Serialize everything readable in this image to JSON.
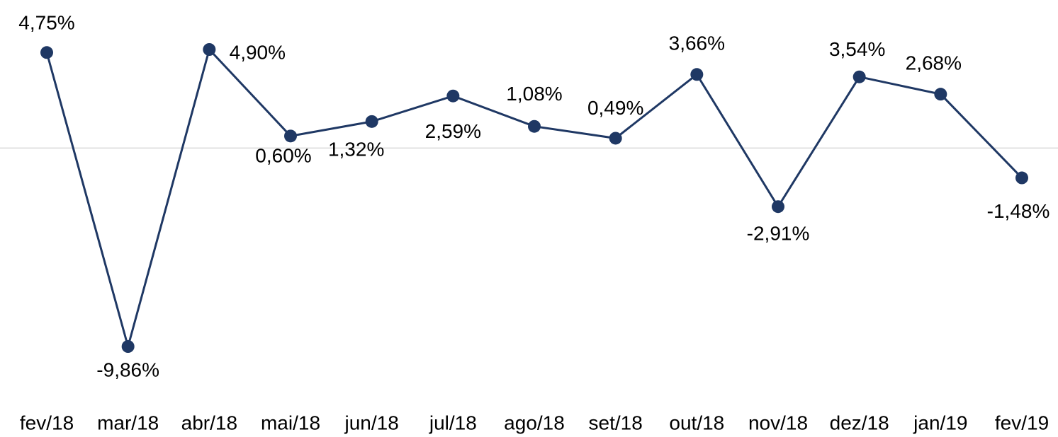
{
  "chart_data": {
    "type": "line",
    "categories": [
      "fev/18",
      "mar/18",
      "abr/18",
      "mai/18",
      "jun/18",
      "jul/18",
      "ago/18",
      "set/18",
      "out/18",
      "nov/18",
      "dez/18",
      "jan/19",
      "fev/19"
    ],
    "series": [
      {
        "name": null,
        "color": "#1f3864",
        "values": [
          4.75,
          -9.86,
          4.9,
          0.6,
          1.32,
          2.59,
          1.08,
          0.49,
          3.66,
          -2.91,
          3.54,
          2.68,
          -1.48
        ],
        "value_labels": [
          "4,75%",
          "-9,86%",
          "4,90%",
          "0,60%",
          "1,32%",
          "2,59%",
          "1,08%",
          "0,49%",
          "3,66%",
          "-2,91%",
          "3,54%",
          "2,68%",
          "-1,48%"
        ]
      }
    ]
  }
}
